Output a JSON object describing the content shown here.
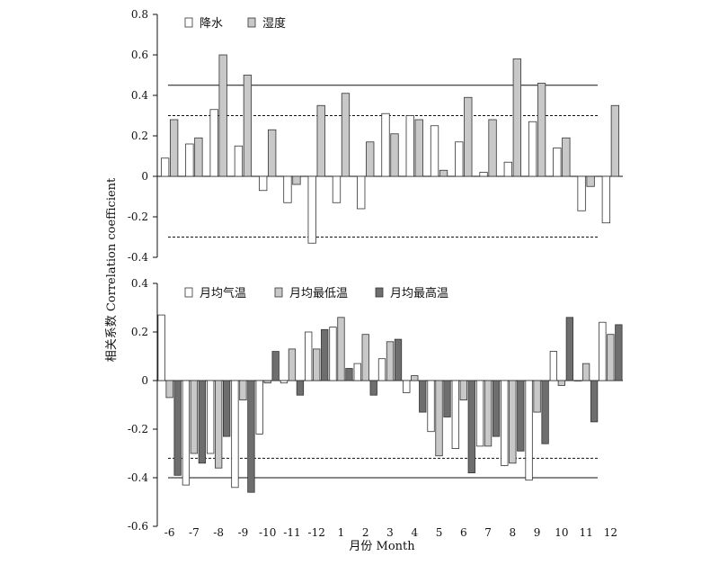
{
  "chart_data": [
    {
      "type": "bar",
      "panel": "top",
      "categories": [
        "-6",
        "-7",
        "-8",
        "-9",
        "-10",
        "-11",
        "-12",
        "1",
        "2",
        "3",
        "4",
        "5",
        "6",
        "7",
        "8",
        "9",
        "10",
        "11",
        "12"
      ],
      "series": [
        {
          "name": "降水",
          "fill": "#ffffff",
          "values": [
            0.09,
            0.16,
            0.33,
            0.15,
            -0.07,
            -0.13,
            -0.33,
            -0.13,
            -0.16,
            0.31,
            0.3,
            0.25,
            0.17,
            0.02,
            0.07,
            0.27,
            0.14,
            -0.17,
            -0.23
          ]
        },
        {
          "name": "湿度",
          "fill": "#c8c8c8",
          "values": [
            0.28,
            0.19,
            0.6,
            0.5,
            0.23,
            -0.04,
            0.35,
            0.41,
            0.17,
            0.21,
            0.28,
            0.03,
            0.39,
            0.28,
            0.58,
            0.46,
            0.19,
            -0.05,
            0.35
          ]
        }
      ],
      "ylim": [
        -0.4,
        0.8
      ],
      "yticks": [
        "-0.4",
        "-0.2",
        "0",
        "0.2",
        "0.4",
        "0.6",
        "0.8"
      ],
      "reference_lines": [
        {
          "value": 0.45,
          "style": "solid"
        },
        {
          "value": 0.3,
          "style": "dashed"
        },
        {
          "value": -0.3,
          "style": "dashed"
        }
      ],
      "legend_position": "top-left"
    },
    {
      "type": "bar",
      "panel": "bottom",
      "categories": [
        "-6",
        "-7",
        "-8",
        "-9",
        "-10",
        "-11",
        "-12",
        "1",
        "2",
        "3",
        "4",
        "5",
        "6",
        "7",
        "8",
        "9",
        "10",
        "11",
        "12"
      ],
      "series": [
        {
          "name": "月均气温",
          "fill": "#ffffff",
          "values": [
            0.27,
            -0.43,
            -0.3,
            -0.44,
            -0.22,
            -0.01,
            0.2,
            0.22,
            0.07,
            0.09,
            -0.05,
            -0.21,
            -0.28,
            -0.27,
            -0.35,
            -0.41,
            0.12,
            0.0,
            0.24
          ]
        },
        {
          "name": "月均最低温",
          "fill": "#c8c8c8",
          "values": [
            -0.07,
            -0.3,
            -0.36,
            -0.08,
            -0.01,
            0.13,
            0.13,
            0.26,
            0.19,
            0.16,
            0.02,
            -0.31,
            -0.08,
            -0.27,
            -0.34,
            -0.13,
            -0.02,
            0.07,
            0.19
          ]
        },
        {
          "name": "月均最高温",
          "fill": "#6e6e6e",
          "values": [
            -0.39,
            -0.34,
            -0.23,
            -0.46,
            0.12,
            -0.06,
            0.21,
            0.05,
            -0.06,
            0.17,
            -0.13,
            -0.15,
            -0.38,
            -0.23,
            -0.29,
            -0.26,
            0.26,
            -0.17,
            0.23
          ]
        }
      ],
      "ylim": [
        -0.6,
        0.4
      ],
      "yticks": [
        "-0.6",
        "-0.4",
        "-0.2",
        "0",
        "0.2",
        "0.4"
      ],
      "reference_lines": [
        {
          "value": -0.32,
          "style": "dashed"
        },
        {
          "value": -0.4,
          "style": "solid"
        }
      ],
      "legend_position": "top-left"
    }
  ],
  "axes": {
    "ylabel": "相关系数 Correlation coefficient",
    "xlabel": "月份 Month",
    "xtick_labels": [
      "-6",
      "-7",
      "-8",
      "-9",
      "-10",
      "-11",
      "-12",
      "1",
      "2",
      "3",
      "4",
      "5",
      "6",
      "7",
      "8",
      "9",
      "10",
      "11",
      "12"
    ]
  },
  "colors": {
    "axis": "#111111",
    "bar_stroke": "#333333"
  }
}
